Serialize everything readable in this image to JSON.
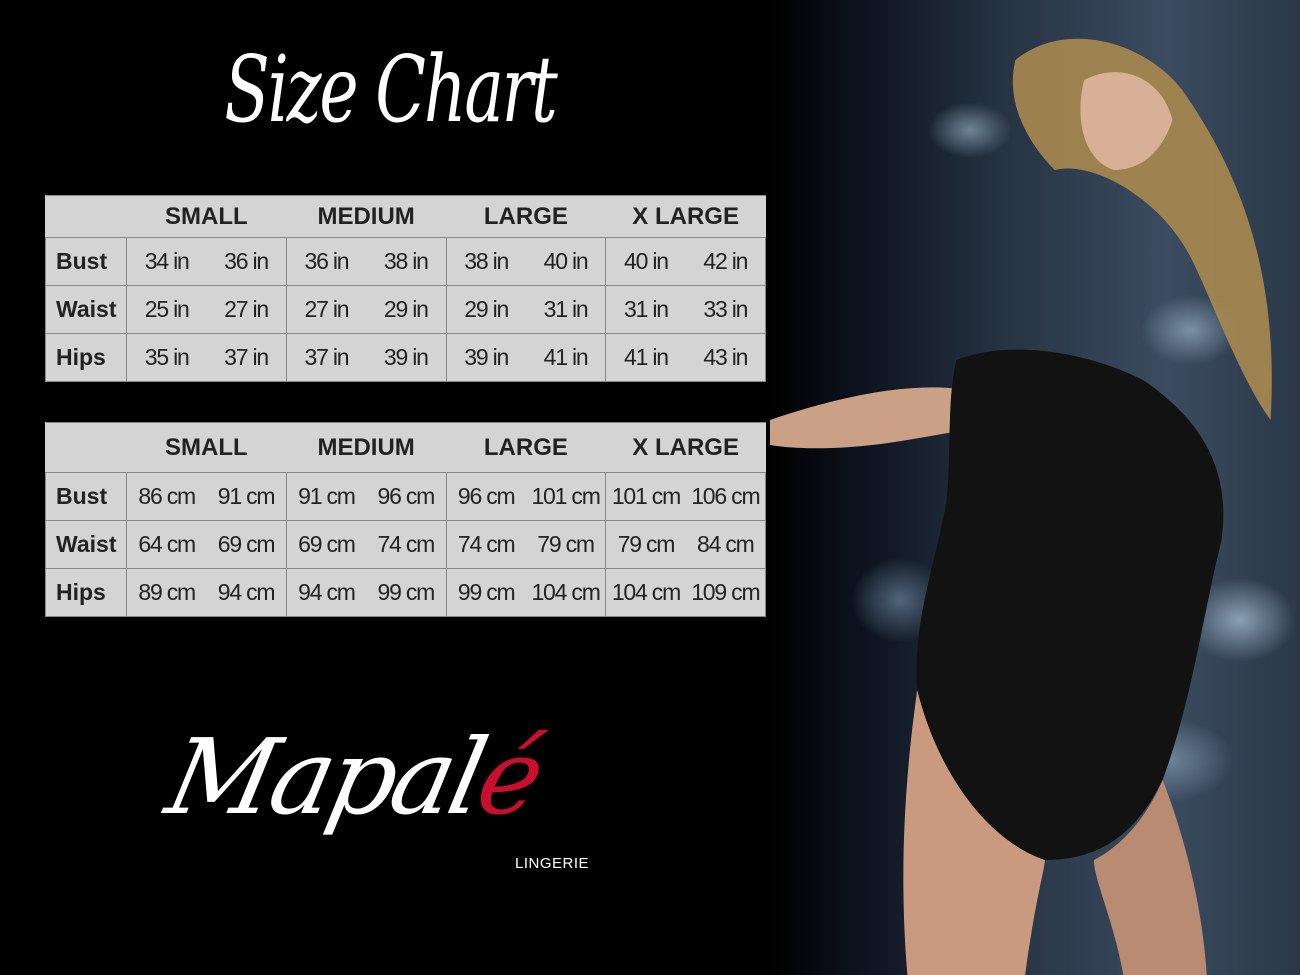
{
  "title": "Size Chart",
  "tables": {
    "inches": {
      "sizes": [
        "SMALL",
        "MEDIUM",
        "LARGE",
        "X LARGE"
      ],
      "rows": [
        {
          "label": "Bust",
          "values": [
            "34 in",
            "36 in",
            "36 in",
            "38 in",
            "38 in",
            "40 in",
            "40 in",
            "42 in"
          ]
        },
        {
          "label": "Waist",
          "values": [
            "25 in",
            "27 in",
            "27 in",
            "29 in",
            "29 in",
            "31 in",
            "31 in",
            "33 in"
          ]
        },
        {
          "label": "Hips",
          "values": [
            "35 in",
            "37 in",
            "37 in",
            "39 in",
            "39 in",
            "41 in",
            "41 in",
            "43 in"
          ]
        }
      ]
    },
    "centimeters": {
      "sizes": [
        "SMALL",
        "MEDIUM",
        "LARGE",
        "X LARGE"
      ],
      "rows": [
        {
          "label": "Bust",
          "values": [
            "86 cm",
            "91 cm",
            "91 cm",
            "96 cm",
            "96 cm",
            "101 cm",
            "101 cm",
            "106 cm"
          ]
        },
        {
          "label": "Waist",
          "values": [
            "64 cm",
            "69 cm",
            "69 cm",
            "74 cm",
            "74 cm",
            "79  cm",
            "79 cm",
            "84 cm"
          ]
        },
        {
          "label": "Hips",
          "values": [
            "89 cm",
            "94 cm",
            "94 cm",
            "99 cm",
            "99 cm",
            "104 cm",
            "104 cm",
            "109 cm"
          ]
        }
      ]
    }
  },
  "logo": {
    "brand_main": "Mapal",
    "brand_accent": "é",
    "subtitle": "LINGERIE"
  },
  "colors": {
    "background": "#000000",
    "table_bg": "#d4d4d4",
    "logo_accent": "#c8102e"
  }
}
